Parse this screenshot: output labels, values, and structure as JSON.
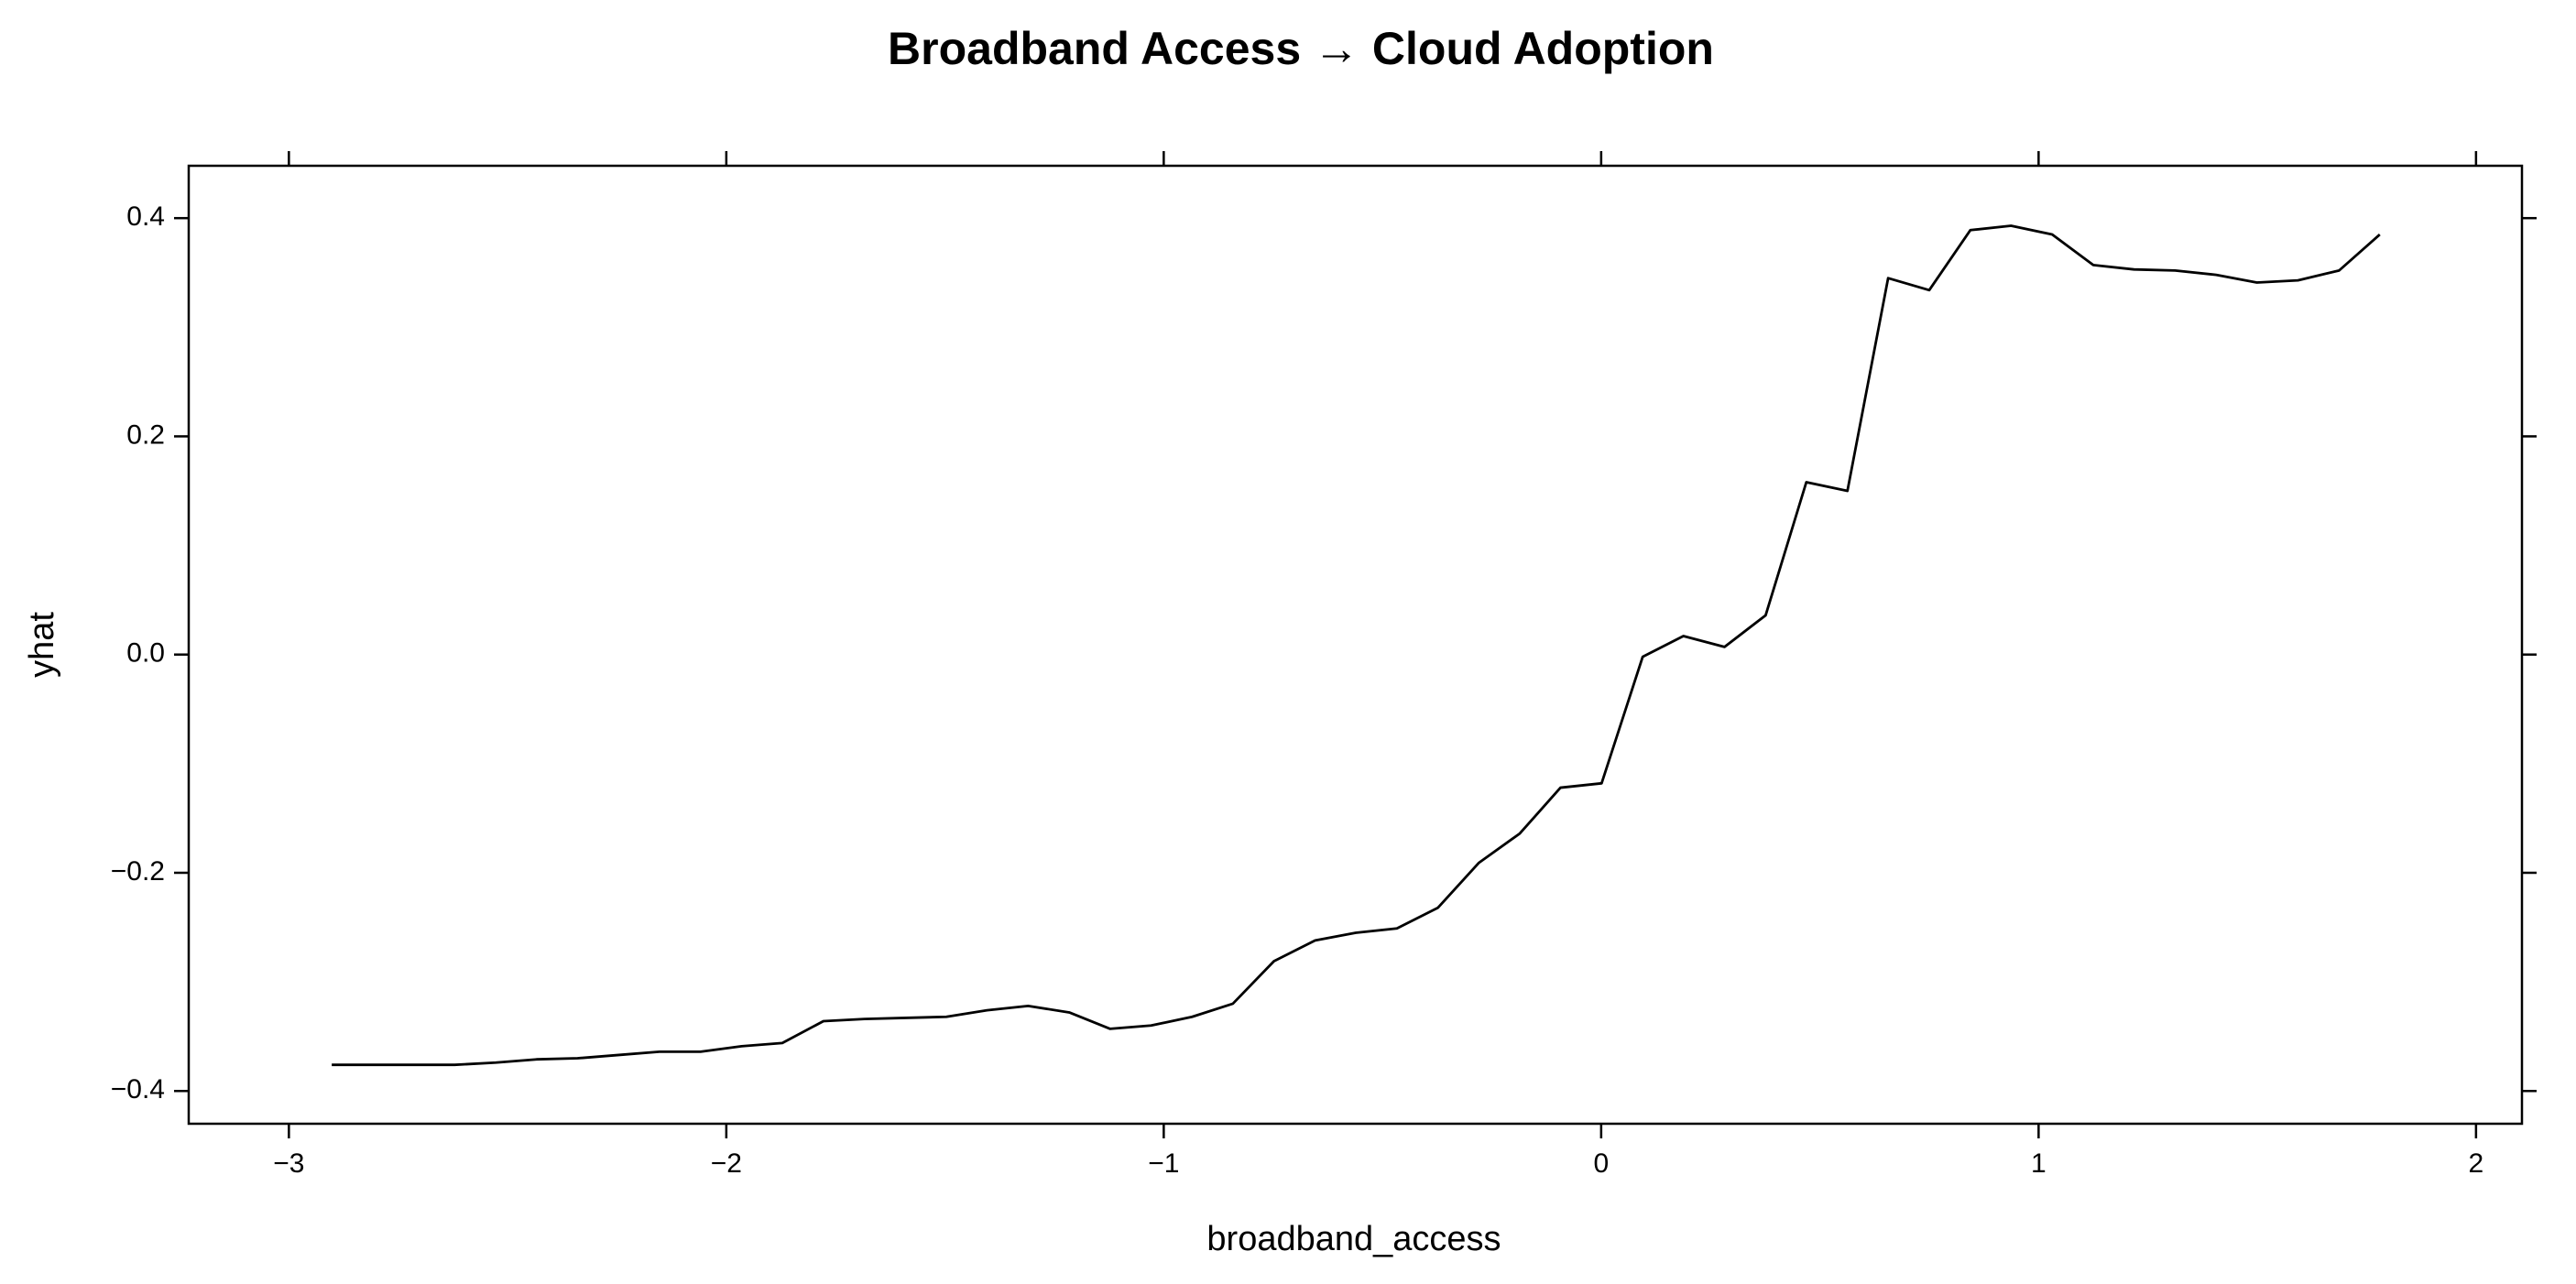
{
  "chart_data": {
    "type": "line",
    "title": "Broadband Access → Cloud Adoption",
    "x_label": "broadband_access",
    "y_label": "yhat",
    "x": [
      -2.902,
      -2.808,
      -2.715,
      -2.621,
      -2.527,
      -2.434,
      -2.34,
      -2.246,
      -2.153,
      -2.059,
      -1.965,
      -1.872,
      -1.778,
      -1.684,
      -1.591,
      -1.497,
      -1.404,
      -1.31,
      -1.216,
      -1.123,
      -1.029,
      -0.935,
      -0.842,
      -0.748,
      -0.654,
      -0.561,
      -0.467,
      -0.373,
      -0.28,
      -0.186,
      -0.093,
      0.001,
      0.095,
      0.188,
      0.282,
      0.376,
      0.469,
      0.563,
      0.656,
      0.75,
      0.844,
      0.937,
      1.031,
      1.125,
      1.218,
      1.312,
      1.406,
      1.499,
      1.593,
      1.687,
      1.78
    ],
    "values": [
      -0.376,
      -0.376,
      -0.376,
      -0.376,
      -0.374,
      -0.371,
      -0.37,
      -0.367,
      -0.364,
      -0.364,
      -0.359,
      -0.356,
      -0.336,
      -0.334,
      -0.333,
      -0.332,
      -0.326,
      -0.322,
      -0.328,
      -0.343,
      -0.34,
      -0.332,
      -0.32,
      -0.281,
      -0.262,
      -0.255,
      -0.251,
      -0.232,
      -0.191,
      -0.164,
      -0.122,
      -0.118,
      -0.002,
      0.017,
      0.007,
      0.036,
      0.158,
      0.15,
      0.345,
      0.334,
      0.389,
      0.393,
      0.385,
      0.357,
      0.353,
      0.352,
      0.348,
      0.341,
      0.343,
      0.352,
      0.385
    ],
    "color": "#000000",
    "xlim": [
      -3.229,
      2.105
    ],
    "ylim": [
      -0.43,
      0.448
    ],
    "xticks": [
      {
        "value": -3,
        "label": "−3"
      },
      {
        "value": -2,
        "label": "−2"
      },
      {
        "value": -1,
        "label": "−1"
      },
      0,
      1,
      2
    ],
    "yticks": [
      {
        "value": -0.4,
        "label": "−0.4"
      },
      {
        "value": -0.2,
        "label": "−0.2"
      },
      {
        "value": 0,
        "label": "0.0"
      },
      0.2,
      0.4
    ]
  }
}
